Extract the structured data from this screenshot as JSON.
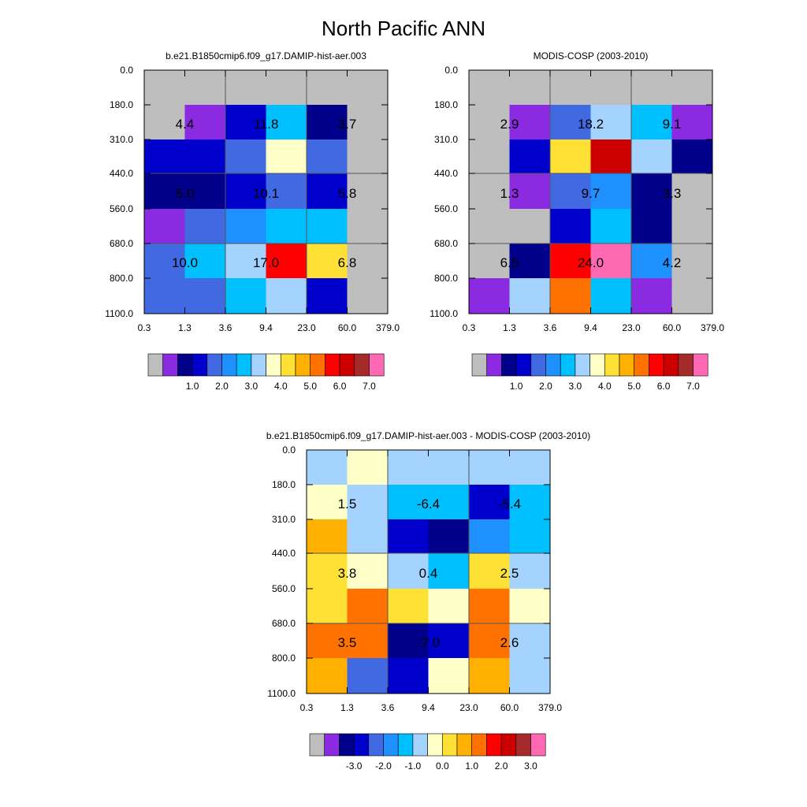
{
  "title": "North Pacific ANN",
  "palettes": {
    "abs": [
      "#bebebe",
      "#8a2be2",
      "#00008b",
      "#0000cd",
      "#4169e1",
      "#1e90ff",
      "#00bfff",
      "#a4d3ff",
      "#ffffc8",
      "#ffe135",
      "#ffb000",
      "#ff7200",
      "#ff0000",
      "#cd0000",
      "#a52a2a",
      "#ff69b4"
    ],
    "diff": [
      "#bebebe",
      "#8a2be2",
      "#00008b",
      "#0000cd",
      "#4169e1",
      "#1e90ff",
      "#00bfff",
      "#a4d3ff",
      "#ffffc8",
      "#ffe135",
      "#ffb000",
      "#ff7200",
      "#ff0000",
      "#cd0000",
      "#a52a2a",
      "#ff69b4"
    ]
  },
  "chart_data": [
    {
      "type": "heatmap",
      "title": "b.e21.B1850cmip6.f09_g17.DAMIP-hist-aer.003",
      "x_tick_labels": [
        "0.3",
        "1.3",
        "3.6",
        "9.4",
        "23.0",
        "60.0",
        "379.0"
      ],
      "y_tick_labels": [
        "0.0",
        "180.0",
        "310.0",
        "440.0",
        "560.0",
        "680.0",
        "800.0",
        "1100.0"
      ],
      "cell_color_index": [
        [
          0,
          0,
          0,
          0,
          0,
          0
        ],
        [
          0,
          1,
          3,
          6,
          2,
          0
        ],
        [
          3,
          3,
          4,
          8,
          4,
          0
        ],
        [
          2,
          2,
          3,
          4,
          3,
          0
        ],
        [
          1,
          4,
          5,
          6,
          6,
          0
        ],
        [
          4,
          6,
          7,
          12,
          9,
          0
        ],
        [
          4,
          4,
          6,
          7,
          3,
          0
        ]
      ],
      "group_labels": [
        {
          "col": 1,
          "row": 1,
          "text": "4.4"
        },
        {
          "col": 3,
          "row": 1,
          "text": "11.8"
        },
        {
          "col": 5,
          "row": 1,
          "text": "3.7"
        },
        {
          "col": 1,
          "row": 3,
          "text": "5.0"
        },
        {
          "col": 3,
          "row": 3,
          "text": "10.1"
        },
        {
          "col": 5,
          "row": 3,
          "text": "5.8"
        },
        {
          "col": 1,
          "row": 5,
          "text": "10.0"
        },
        {
          "col": 3,
          "row": 5,
          "text": "17.0"
        },
        {
          "col": 5,
          "row": 5,
          "text": "6.8"
        }
      ],
      "colorbar": {
        "palette": "abs",
        "labels": [
          "1.0",
          "2.0",
          "3.0",
          "4.0",
          "5.0",
          "6.0",
          "7.0"
        ]
      }
    },
    {
      "type": "heatmap",
      "title": "MODIS-COSP (2003-2010)",
      "x_tick_labels": [
        "0.3",
        "1.3",
        "3.6",
        "9.4",
        "23.0",
        "60.0",
        "379.0"
      ],
      "y_tick_labels": [
        "0.0",
        "180.0",
        "310.0",
        "440.0",
        "560.0",
        "680.0",
        "800.0",
        "1100.0"
      ],
      "cell_color_index": [
        [
          0,
          0,
          0,
          0,
          0,
          0
        ],
        [
          0,
          1,
          4,
          7,
          6,
          1
        ],
        [
          0,
          3,
          9,
          13,
          7,
          2
        ],
        [
          0,
          1,
          4,
          5,
          2,
          0
        ],
        [
          0,
          0,
          3,
          6,
          2,
          0
        ],
        [
          0,
          2,
          12,
          15,
          5,
          0
        ],
        [
          1,
          7,
          11,
          6,
          1,
          0
        ]
      ],
      "group_labels": [
        {
          "col": 1,
          "row": 1,
          "text": "2.9"
        },
        {
          "col": 3,
          "row": 1,
          "text": "18.2"
        },
        {
          "col": 5,
          "row": 1,
          "text": "9.1"
        },
        {
          "col": 1,
          "row": 3,
          "text": "1.3"
        },
        {
          "col": 3,
          "row": 3,
          "text": "9.7"
        },
        {
          "col": 5,
          "row": 3,
          "text": "3.3"
        },
        {
          "col": 1,
          "row": 5,
          "text": "6.5"
        },
        {
          "col": 3,
          "row": 5,
          "text": "24.0"
        },
        {
          "col": 5,
          "row": 5,
          "text": "4.2"
        }
      ],
      "colorbar": {
        "palette": "abs",
        "labels": [
          "1.0",
          "2.0",
          "3.0",
          "4.0",
          "5.0",
          "6.0",
          "7.0"
        ]
      }
    },
    {
      "type": "heatmap",
      "title": "b.e21.B1850cmip6.f09_g17.DAMIP-hist-aer.003 - MODIS-COSP (2003-2010)",
      "x_tick_labels": [
        "0.3",
        "1.3",
        "3.6",
        "9.4",
        "23.0",
        "60.0",
        "379.0"
      ],
      "y_tick_labels": [
        "0.0",
        "180.0",
        "310.0",
        "440.0",
        "560.0",
        "680.0",
        "800.0",
        "1100.0"
      ],
      "cell_color_index": [
        [
          7,
          8,
          7,
          7,
          7,
          7
        ],
        [
          8,
          7,
          6,
          6,
          3,
          6
        ],
        [
          10,
          7,
          3,
          2,
          5,
          6
        ],
        [
          9,
          8,
          7,
          6,
          9,
          7
        ],
        [
          9,
          11,
          9,
          8,
          11,
          8
        ],
        [
          11,
          11,
          2,
          3,
          11,
          7
        ],
        [
          10,
          4,
          3,
          8,
          10,
          7
        ]
      ],
      "group_labels": [
        {
          "col": 1,
          "row": 1,
          "text": "1.5"
        },
        {
          "col": 3,
          "row": 1,
          "text": "-6.4"
        },
        {
          "col": 5,
          "row": 1,
          "text": "-5.4"
        },
        {
          "col": 1,
          "row": 3,
          "text": "3.8"
        },
        {
          "col": 3,
          "row": 3,
          "text": "0.4"
        },
        {
          "col": 5,
          "row": 3,
          "text": "2.5"
        },
        {
          "col": 1,
          "row": 5,
          "text": "3.5"
        },
        {
          "col": 3,
          "row": 5,
          "text": "-7.0"
        },
        {
          "col": 5,
          "row": 5,
          "text": "2.6"
        }
      ],
      "colorbar": {
        "palette": "diff",
        "labels": [
          "-3.0",
          "-2.0",
          "-1.0",
          "0.0",
          "1.0",
          "2.0",
          "3.0"
        ]
      }
    }
  ]
}
